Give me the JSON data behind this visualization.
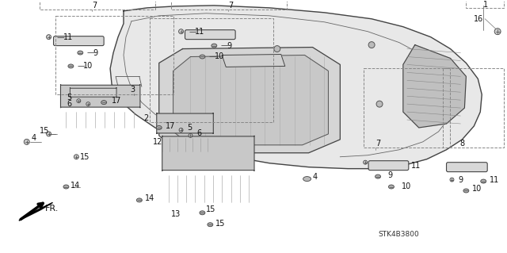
{
  "bg_color": "#ffffff",
  "fig_width": 6.4,
  "fig_height": 3.19,
  "dpi": 100,
  "part_code": "STK4B3800",
  "line_color": "#444444",
  "dashed_color": "#888888",
  "fill_light": "#e8e8e8",
  "fill_mid": "#d0d0d0",
  "fill_dark": "#b0b0b0"
}
